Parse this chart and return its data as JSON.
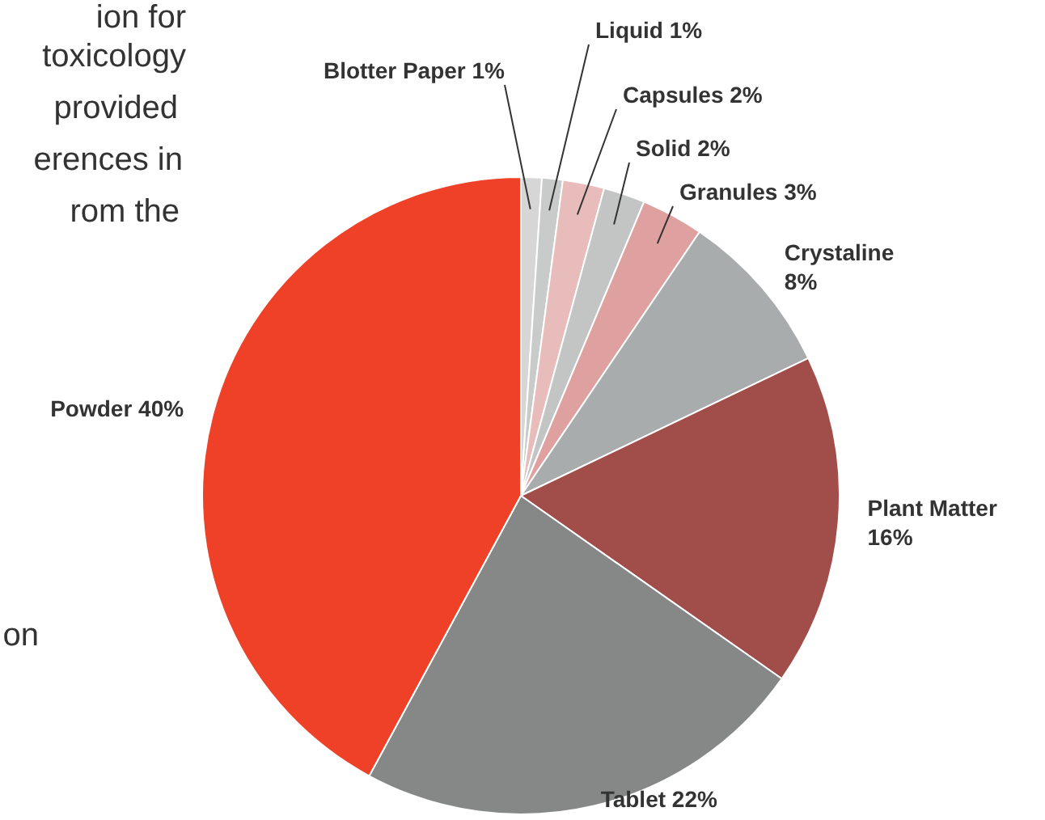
{
  "chart_data": {
    "type": "pie",
    "categories": [
      "Blotter Paper",
      "Liquid",
      "Capsules",
      "Solid",
      "Granules",
      "Crystaline",
      "Plant Matter",
      "Tablet",
      "Powder"
    ],
    "values": [
      1,
      1,
      2,
      2,
      3,
      8,
      16,
      22,
      40
    ],
    "value_labels": [
      "1%",
      "1%",
      "2%",
      "2%",
      "3%",
      "8%",
      "16%",
      "22%",
      "40%"
    ],
    "colors": [
      "#d6d6d6",
      "#c9cbcb",
      "#e9bcbc",
      "#c3c4c4",
      "#dfa1a0",
      "#a9acac",
      "#a14e4b",
      "#858887",
      "#ee4128"
    ],
    "annotations": [
      "ion for",
      "toxicology",
      "provided",
      "erences in",
      "rom the",
      "on"
    ]
  }
}
